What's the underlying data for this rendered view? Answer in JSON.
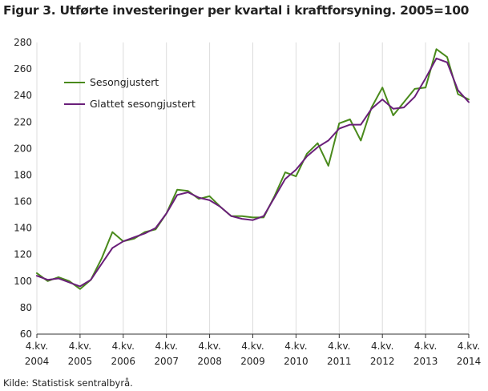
{
  "title": "Figur 3. Utførte investeringer per kvartal i kraftforsyning. 2005=100",
  "source": "Kilde: Statistisk sentralbyrå.",
  "chart_data": {
    "type": "line",
    "y_ticks": [
      60,
      80,
      100,
      120,
      140,
      160,
      180,
      200,
      220,
      240,
      260,
      280
    ],
    "ylim": [
      60,
      280
    ],
    "x_range": [
      0,
      40
    ],
    "x_ticks": [
      {
        "index": 0,
        "line1": "4.kv.",
        "line2": "2004"
      },
      {
        "index": 4,
        "line1": "4.kv.",
        "line2": "2005"
      },
      {
        "index": 8,
        "line1": "4.kv.",
        "line2": "2006"
      },
      {
        "index": 12,
        "line1": "4.kv.",
        "line2": "2007"
      },
      {
        "index": 16,
        "line1": "4.kv.",
        "line2": "2008"
      },
      {
        "index": 20,
        "line1": "4.kv.",
        "line2": "2009"
      },
      {
        "index": 24,
        "line1": "4.kv.",
        "line2": "2010"
      },
      {
        "index": 28,
        "line1": "4.kv.",
        "line2": "2011"
      },
      {
        "index": 32,
        "line1": "4.kv.",
        "line2": "2012"
      },
      {
        "index": 36,
        "line1": "4.kv.",
        "line2": "2013"
      },
      {
        "index": 40,
        "line1": "4.kv.",
        "line2": "2014"
      }
    ],
    "grid": "vertical",
    "legend_position": "top-left",
    "series": [
      {
        "name": "Sesongjustert",
        "color": "#4a8a1c",
        "values": [
          106,
          100,
          103,
          100,
          94,
          101,
          117,
          137,
          130,
          132,
          137,
          139,
          151,
          169,
          168,
          162,
          164,
          156,
          149,
          149,
          148,
          148,
          164,
          182,
          179,
          196,
          204,
          187,
          219,
          222,
          206,
          231,
          246,
          225,
          235,
          245,
          246,
          275,
          269,
          241,
          237
        ]
      },
      {
        "name": "Glattet sesongjustert",
        "color": "#6a1f7a",
        "values": [
          104,
          101,
          102,
          99,
          96,
          101,
          113,
          125,
          130,
          133,
          136,
          140,
          151,
          165,
          167,
          163,
          161,
          156,
          149,
          147,
          146,
          149,
          163,
          177,
          184,
          194,
          201,
          206,
          215,
          218,
          218,
          230,
          237,
          230,
          231,
          239,
          253,
          268,
          265,
          244,
          235
        ]
      }
    ]
  }
}
